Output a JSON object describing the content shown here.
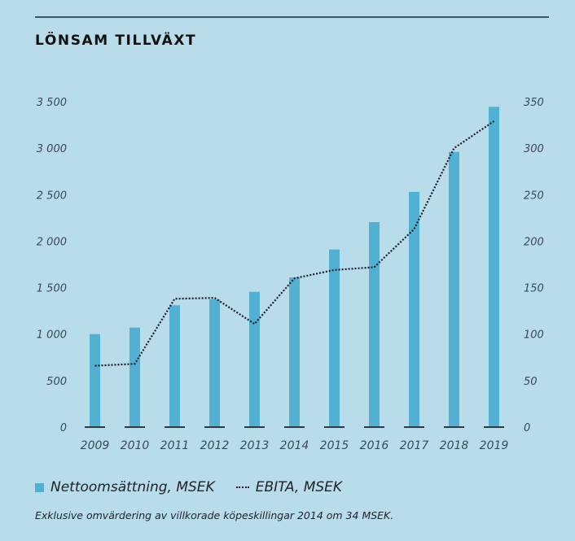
{
  "chart_data": {
    "type": "bar",
    "title": "LÖNSAM TILLVÄXT",
    "categories": [
      "2009",
      "2010",
      "2011",
      "2012",
      "2013",
      "2014",
      "2015",
      "2016",
      "2017",
      "2018",
      "2019"
    ],
    "series": [
      {
        "name": "Nettoomsättning, MSEK",
        "type": "bar",
        "axis": "left",
        "color": "#52b0d2",
        "values": [
          1000,
          1070,
          1310,
          1375,
          1455,
          1610,
          1910,
          2205,
          2530,
          2960,
          3445
        ]
      },
      {
        "name": "EBITA, MSEK",
        "type": "line",
        "style": "dotted",
        "axis": "right",
        "color": "#1a1f24",
        "values": [
          66,
          68,
          138,
          139,
          111,
          160,
          169,
          172,
          213,
          300,
          329
        ]
      }
    ],
    "y_left": {
      "ylim": [
        0,
        3500
      ],
      "ticks": [
        0,
        500,
        1000,
        1500,
        2000,
        2500,
        3000,
        3500
      ],
      "tick_labels": [
        "0",
        "500",
        "1 000",
        "1 500",
        "2 000",
        "2 500",
        "3 000",
        "3 500"
      ]
    },
    "y_right": {
      "ylim": [
        0,
        350
      ],
      "ticks": [
        0,
        50,
        100,
        150,
        200,
        250,
        300,
        350
      ],
      "tick_labels": [
        "0",
        "50",
        "100",
        "150",
        "200",
        "250",
        "300",
        "350"
      ]
    },
    "xlabel": "",
    "ylabel": "",
    "grid": false,
    "legend_position": "bottom-left",
    "footnote": "Exklusive omvärdering av villkorade köpeskillingar 2014 om 34 MSEK."
  },
  "header": {
    "title": "LÖNSAM TILLVÄXT"
  },
  "legend": {
    "bar_label": "Nettoomsättning, MSEK",
    "line_label": "EBITA, MSEK"
  },
  "footnote": "Exklusive omvärdering av villkorade köpeskillingar 2014 om 34 MSEK."
}
